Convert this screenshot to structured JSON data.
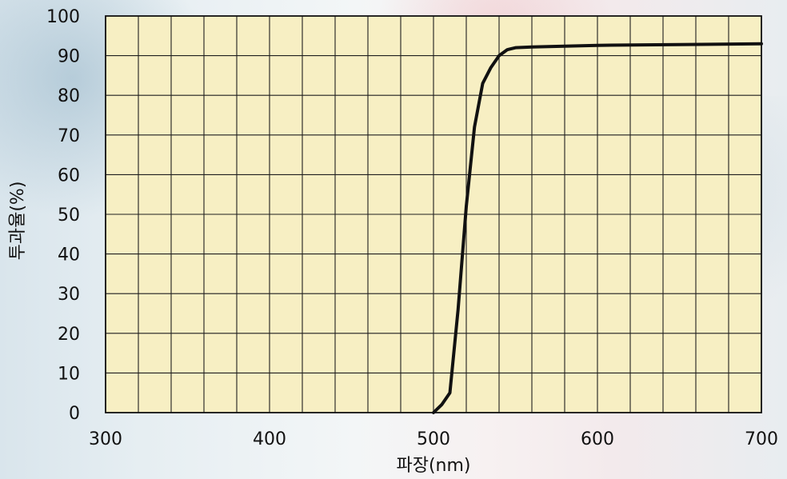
{
  "chart_data": {
    "type": "line",
    "title": "",
    "xlabel": "파장(nm)",
    "ylabel": "투과율(%)",
    "xlim": [
      300,
      700
    ],
    "ylim": [
      0,
      100
    ],
    "x_ticks": [
      300,
      400,
      500,
      600,
      700
    ],
    "y_ticks": [
      0,
      10,
      20,
      30,
      40,
      50,
      60,
      70,
      80,
      90,
      100
    ],
    "grid": true,
    "plot_background": "#f7efc3",
    "grid_color": "#1f1f1f",
    "line_color": "#111111",
    "series": [
      {
        "x": [
          500,
          505,
          510,
          515,
          520,
          525,
          530,
          535,
          540,
          545,
          550,
          560,
          580,
          600,
          650,
          700
        ],
        "y": [
          0,
          2,
          5,
          26,
          52,
          72,
          83,
          87,
          90,
          91.5,
          92,
          92.2,
          92.4,
          92.6,
          92.8,
          93
        ]
      }
    ]
  }
}
